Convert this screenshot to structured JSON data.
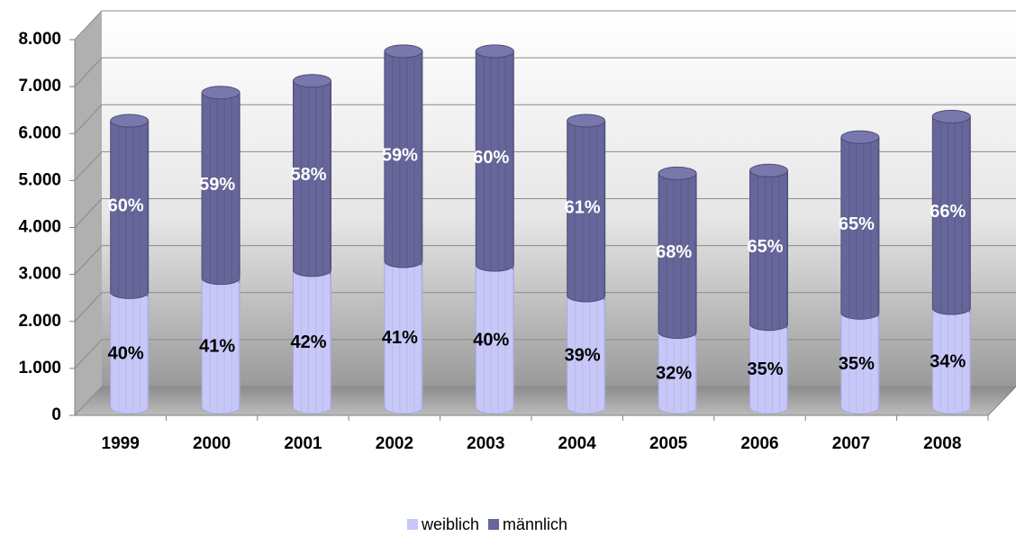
{
  "chart_data": {
    "type": "bar3d_stacked",
    "categories": [
      "1999",
      "2000",
      "2001",
      "2002",
      "2003",
      "2004",
      "2005",
      "2006",
      "2007",
      "2008"
    ],
    "series": [
      {
        "name": "weiblich",
        "color": "#c8c8f8",
        "values": [
          2450,
          2750,
          2920,
          3110,
          3030,
          2380,
          1600,
          1770,
          2010,
          2110
        ],
        "point_labels": [
          "40%",
          "41%",
          "42%",
          "41%",
          "40%",
          "39%",
          "32%",
          "35%",
          "35%",
          "34%"
        ]
      },
      {
        "name": "männlich",
        "color": "#66669a",
        "values": [
          3650,
          3950,
          4030,
          4470,
          4550,
          3720,
          3380,
          3270,
          3740,
          4080
        ],
        "point_labels": [
          "60%",
          "59%",
          "58%",
          "59%",
          "60%",
          "61%",
          "68%",
          "65%",
          "65%",
          "66%"
        ]
      }
    ],
    "ylim": [
      0,
      8000
    ],
    "yticks": [
      0,
      {
        "value": 1000,
        "label": "1.000"
      },
      {
        "value": 2000,
        "label": "2.000"
      },
      {
        "value": 3000,
        "label": "3.000"
      },
      {
        "value": 4000,
        "label": "4.000"
      },
      {
        "value": 5000,
        "label": "5.000"
      },
      {
        "value": 6000,
        "label": "6.000"
      },
      {
        "value": 7000,
        "label": "7.000"
      },
      {
        "value": 8000,
        "label": "8.000"
      }
    ],
    "grid": true,
    "legend": "bottom"
  }
}
